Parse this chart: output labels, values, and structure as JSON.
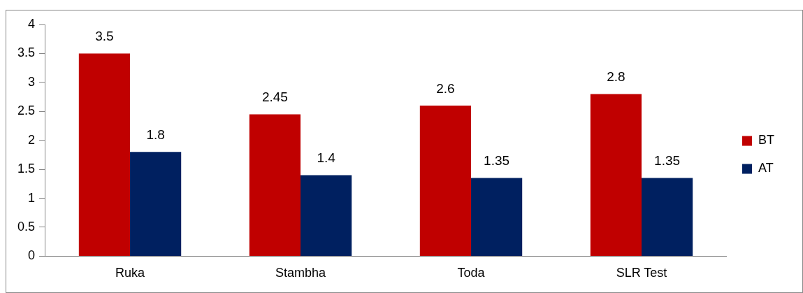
{
  "chart_data": {
    "type": "bar",
    "categories": [
      "Ruka",
      "Stambha",
      "Toda",
      "SLR Test"
    ],
    "series": [
      {
        "name": "BT",
        "color": "#c00000",
        "values": [
          3.5,
          2.45,
          2.6,
          2.8
        ]
      },
      {
        "name": "AT",
        "color": "#002060",
        "values": [
          1.8,
          1.4,
          1.35,
          1.35
        ]
      }
    ],
    "ylim": [
      0,
      4
    ],
    "yticks": [
      0,
      0.5,
      1,
      1.5,
      2,
      2.5,
      3,
      3.5,
      4
    ],
    "grid": false,
    "legend": "right",
    "data_labels": true
  }
}
